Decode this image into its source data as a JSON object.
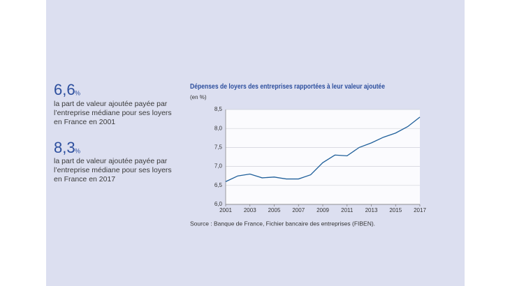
{
  "highlights": [
    {
      "value": "6,6",
      "unit": "%",
      "lines": [
        "la part de valeur ajoutée payée par",
        "l’entreprise médiane pour ses loyers",
        "en France en 2001"
      ]
    },
    {
      "value": "8,3",
      "unit": "%",
      "lines": [
        "la part de valeur ajoutée payée par",
        "l’entreprise médiane pour ses loyers",
        "en France en 2017"
      ]
    }
  ],
  "chart_data": {
    "type": "line",
    "title": "Dépenses de loyers des entreprises rapportées à leur valeur ajoutée",
    "y_label": "(en %)",
    "source": "Source : Banque de France, Fichier bancaire des entreprises (FIBEN).",
    "x": [
      2001,
      2002,
      2003,
      2004,
      2005,
      2006,
      2007,
      2008,
      2009,
      2010,
      2011,
      2012,
      2013,
      2014,
      2015,
      2016,
      2017
    ],
    "values": [
      6.6,
      6.75,
      6.8,
      6.7,
      6.72,
      6.67,
      6.67,
      6.78,
      7.1,
      7.3,
      7.28,
      7.5,
      7.62,
      7.77,
      7.88,
      8.05,
      8.3
    ],
    "color": "#1f5f9a",
    "xlim": [
      2001,
      2017
    ],
    "xticks": [
      2001,
      2003,
      2005,
      2007,
      2009,
      2011,
      2013,
      2015,
      2017
    ],
    "ylim": [
      6,
      8.5
    ],
    "yticks": [
      {
        "value": 6,
        "label": "6,0"
      },
      {
        "value": 6.5,
        "label": "6,5"
      },
      {
        "value": 7,
        "label": "7,0"
      },
      {
        "value": 7.5,
        "label": "7,5"
      },
      {
        "value": 8,
        "label": "8,0"
      },
      {
        "value": 8.5,
        "label": "8,5"
      }
    ],
    "grid": true
  }
}
